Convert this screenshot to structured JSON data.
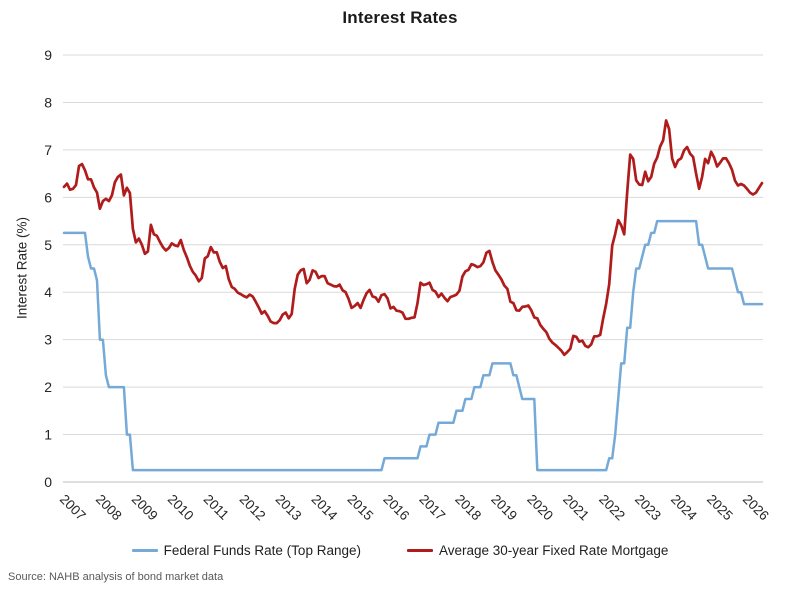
{
  "title": "Interest Rates",
  "y_axis_title": "Interest Rate (%)",
  "source_note": "Source: NAHB analysis of bond market data",
  "colors": {
    "federal_funds_line": "#74A9D8",
    "mortgage_line": "#B01C1C",
    "gridline": "#D9D9D9",
    "axis_line": "#BFBFBF",
    "tick_text": "#262626",
    "source_text": "#595959"
  },
  "chart_data": {
    "type": "line",
    "title": "Interest Rates",
    "xlabel": "",
    "ylabel": "Interest Rate (%)",
    "ylim": [
      0,
      9
    ],
    "y_ticks": [
      0,
      1,
      2,
      3,
      4,
      5,
      6,
      7,
      8,
      9
    ],
    "grid": "horizontal",
    "legend_position": "bottom",
    "x_unit": "month",
    "x_start": "2007-01",
    "x_end": "2026-06",
    "x_tick_years": [
      "2007",
      "2008",
      "2009",
      "2010",
      "2011",
      "2012",
      "2013",
      "2014",
      "2015",
      "2016",
      "2017",
      "2018",
      "2019",
      "2020",
      "2021",
      "2022",
      "2023",
      "2024",
      "2025",
      "2026"
    ],
    "series": [
      {
        "name": "Federal Funds Rate (Top Range)",
        "color": "#74A9D8",
        "values": [
          5.25,
          5.25,
          5.25,
          5.25,
          5.25,
          5.25,
          5.25,
          5.25,
          4.75,
          4.5,
          4.5,
          4.25,
          3,
          3,
          2.25,
          2,
          2,
          2,
          2,
          2,
          2,
          1,
          1,
          0.25,
          0.25,
          0.25,
          0.25,
          0.25,
          0.25,
          0.25,
          0.25,
          0.25,
          0.25,
          0.25,
          0.25,
          0.25,
          0.25,
          0.25,
          0.25,
          0.25,
          0.25,
          0.25,
          0.25,
          0.25,
          0.25,
          0.25,
          0.25,
          0.25,
          0.25,
          0.25,
          0.25,
          0.25,
          0.25,
          0.25,
          0.25,
          0.25,
          0.25,
          0.25,
          0.25,
          0.25,
          0.25,
          0.25,
          0.25,
          0.25,
          0.25,
          0.25,
          0.25,
          0.25,
          0.25,
          0.25,
          0.25,
          0.25,
          0.25,
          0.25,
          0.25,
          0.25,
          0.25,
          0.25,
          0.25,
          0.25,
          0.25,
          0.25,
          0.25,
          0.25,
          0.25,
          0.25,
          0.25,
          0.25,
          0.25,
          0.25,
          0.25,
          0.25,
          0.25,
          0.25,
          0.25,
          0.25,
          0.25,
          0.25,
          0.25,
          0.25,
          0.25,
          0.25,
          0.25,
          0.25,
          0.25,
          0.25,
          0.25,
          0.5,
          0.5,
          0.5,
          0.5,
          0.5,
          0.5,
          0.5,
          0.5,
          0.5,
          0.5,
          0.5,
          0.5,
          0.75,
          0.75,
          0.75,
          1,
          1,
          1,
          1.25,
          1.25,
          1.25,
          1.25,
          1.25,
          1.25,
          1.5,
          1.5,
          1.5,
          1.75,
          1.75,
          1.75,
          2,
          2,
          2,
          2.25,
          2.25,
          2.25,
          2.5,
          2.5,
          2.5,
          2.5,
          2.5,
          2.5,
          2.5,
          2.25,
          2.25,
          2,
          1.75,
          1.75,
          1.75,
          1.75,
          1.75,
          0.25,
          0.25,
          0.25,
          0.25,
          0.25,
          0.25,
          0.25,
          0.25,
          0.25,
          0.25,
          0.25,
          0.25,
          0.25,
          0.25,
          0.25,
          0.25,
          0.25,
          0.25,
          0.25,
          0.25,
          0.25,
          0.25,
          0.25,
          0.25,
          0.5,
          0.5,
          1,
          1.75,
          2.5,
          2.5,
          3.25,
          3.25,
          4,
          4.5,
          4.5,
          4.75,
          5,
          5,
          5.25,
          5.25,
          5.5,
          5.5,
          5.5,
          5.5,
          5.5,
          5.5,
          5.5,
          5.5,
          5.5,
          5.5,
          5.5,
          5.5,
          5.5,
          5.5,
          5,
          5,
          4.75,
          4.5,
          4.5,
          4.5,
          4.5,
          4.5,
          4.5,
          4.5,
          4.5,
          4.5,
          4.25,
          4,
          4,
          3.75,
          3.75,
          3.75,
          3.75,
          3.75,
          3.75,
          3.75
        ]
      },
      {
        "name": "Average 30-year Fixed Rate Mortgage",
        "color": "#B01C1C",
        "values": [
          6.22,
          6.29,
          6.16,
          6.18,
          6.26,
          6.66,
          6.7,
          6.57,
          6.38,
          6.38,
          6.21,
          6.1,
          5.76,
          5.92,
          5.97,
          5.92,
          6.04,
          6.32,
          6.43,
          6.48,
          6.04,
          6.2,
          6.09,
          5.33,
          5.05,
          5.13,
          5,
          4.81,
          4.86,
          5.42,
          5.22,
          5.19,
          5.06,
          4.95,
          4.88,
          4.93,
          5.03,
          4.99,
          4.97,
          5.1,
          4.89,
          4.74,
          4.56,
          4.43,
          4.35,
          4.23,
          4.3,
          4.71,
          4.76,
          4.95,
          4.84,
          4.84,
          4.64,
          4.51,
          4.55,
          4.27,
          4.11,
          4.07,
          3.99,
          3.96,
          3.92,
          3.89,
          3.95,
          3.91,
          3.8,
          3.68,
          3.55,
          3.6,
          3.5,
          3.38,
          3.35,
          3.35,
          3.41,
          3.53,
          3.57,
          3.45,
          3.54,
          4.07,
          4.37,
          4.46,
          4.49,
          4.19,
          4.26,
          4.46,
          4.43,
          4.3,
          4.34,
          4.34,
          4.19,
          4.16,
          4.13,
          4.12,
          4.16,
          4.04,
          4,
          3.86,
          3.67,
          3.71,
          3.77,
          3.67,
          3.84,
          3.98,
          4.05,
          3.91,
          3.89,
          3.8,
          3.94,
          3.96,
          3.87,
          3.66,
          3.69,
          3.61,
          3.6,
          3.57,
          3.44,
          3.44,
          3.46,
          3.47,
          3.77,
          4.2,
          4.15,
          4.17,
          4.2,
          4.05,
          4.01,
          3.9,
          3.97,
          3.88,
          3.81,
          3.9,
          3.92,
          3.95,
          4.03,
          4.33,
          4.44,
          4.47,
          4.59,
          4.57,
          4.53,
          4.55,
          4.63,
          4.83,
          4.87,
          4.64,
          4.46,
          4.37,
          4.27,
          4.14,
          4.07,
          3.8,
          3.77,
          3.62,
          3.61,
          3.69,
          3.7,
          3.72,
          3.62,
          3.47,
          3.45,
          3.31,
          3.23,
          3.16,
          3.02,
          2.94,
          2.89,
          2.83,
          2.77,
          2.68,
          2.74,
          2.81,
          3.08,
          3.06,
          2.96,
          2.98,
          2.87,
          2.84,
          2.9,
          3.07,
          3.07,
          3.1,
          3.45,
          3.76,
          4.17,
          4.98,
          5.23,
          5.52,
          5.41,
          5.22,
          6.11,
          6.9,
          6.81,
          6.36,
          6.27,
          6.26,
          6.54,
          6.34,
          6.43,
          6.71,
          6.84,
          7.07,
          7.2,
          7.62,
          7.44,
          6.82,
          6.64,
          6.78,
          6.82,
          6.99,
          7.06,
          6.92,
          6.85,
          6.5,
          6.18,
          6.43,
          6.81,
          6.72,
          6.96,
          6.84,
          6.65,
          6.73,
          6.82,
          6.82,
          6.72,
          6.58,
          6.35,
          6.25,
          6.28,
          6.25,
          6.18,
          6.1,
          6.06,
          6.1,
          6.2,
          6.3
        ]
      }
    ]
  }
}
